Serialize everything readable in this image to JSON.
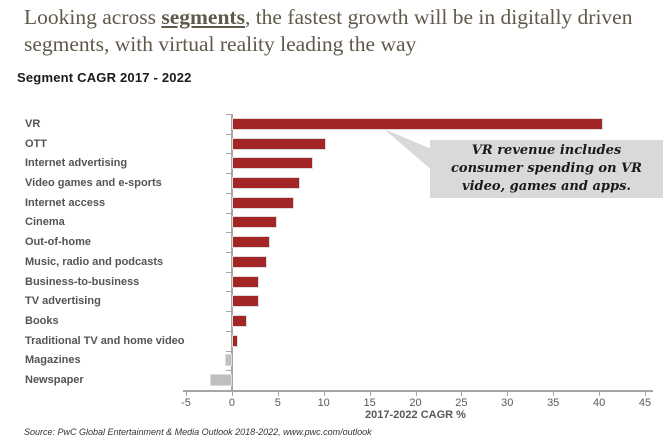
{
  "title": {
    "pre": "Looking across ",
    "highlight": "segments",
    "post": ", the fastest growth will be in digitally driven segments, with virtual reality leading the way"
  },
  "subtitle": "Segment CAGR 2017 - 2022",
  "callout": {
    "lines": [
      "VR revenue includes",
      "consumer spending on VR",
      "video, games and apps."
    ]
  },
  "source": "Source:  PwC Global Entertainment & Media Outlook 2018-2022, www.pwc.com/outlook",
  "colors": {
    "positive_bar": "#a32626",
    "negative_bar": "#bfbfbf",
    "axis": "#a6a6a6",
    "label_text": "#545454",
    "title_text": "#60594a",
    "callout_bg": "#d9d9d9"
  },
  "chart_data": {
    "type": "bar",
    "orientation": "horizontal",
    "title": "Segment CAGR 2017 - 2022",
    "categories": [
      "VR",
      "OTT",
      "Internet advertising",
      "Video games and e-sports",
      "Internet access",
      "Cinema",
      "Out-of-home",
      "Music, radio and podcasts",
      "Business-to-business",
      "TV advertising",
      "Books",
      "Traditional TV and home video",
      "Magazines",
      "Newspaper"
    ],
    "values": [
      40.4,
      10.3,
      8.8,
      7.4,
      6.8,
      4.9,
      4.1,
      3.8,
      3.0,
      2.9,
      1.6,
      0.7,
      -0.8,
      -2.4
    ],
    "xlabel": "2017-2022 CAGR %",
    "xlim": [
      -5,
      45
    ],
    "xticks": [
      -5,
      0,
      5,
      10,
      15,
      20,
      25,
      30,
      35,
      40,
      45
    ],
    "grid": false,
    "legend": null,
    "annotation": "VR revenue includes consumer spending on VR video, games and apps."
  }
}
